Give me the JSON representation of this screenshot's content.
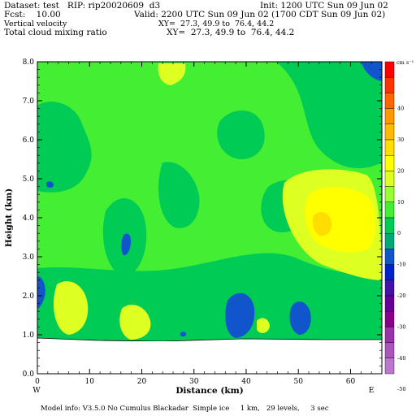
{
  "header": {
    "dataset": "Dataset: test   RIP: rip20020609  d3",
    "init": "Init: 1200 UTC Sun 09 Jun 02",
    "fcst": "Fcst:    10.00",
    "valid": "Valid: 2200 UTC Sun 09 Jun 02 (1700 CDT Sun 09 Jun 02)",
    "field1": "Vertical velocity",
    "field1_xy": "XY=  27.3, 49.9 to  76.4, 44.2",
    "field2": "Total cloud mixing ratio",
    "field2_xy": "XY=  27.3, 49.9 to  76.4, 44.2"
  },
  "footer": "Model info: V3.5.0 No Cumulus Blackadar  Simple ice     1 km,   29 levels,     3 sec",
  "chart_data": {
    "type": "heatmap",
    "xlabel": "Distance (km)",
    "ylabel": "Height (km)",
    "xlim": [
      0,
      66
    ],
    "ylim": [
      0,
      8
    ],
    "x_ticks": [
      "0",
      "10",
      "20",
      "30",
      "40",
      "50",
      "60"
    ],
    "y_ticks": [
      "0.0",
      "1.0",
      "2.0",
      "3.0",
      "4.0",
      "5.0",
      "6.0",
      "7.0",
      "8.0"
    ],
    "x_left_label": "W",
    "x_right_label": "E",
    "colorbar": {
      "units": "cm s⁻¹",
      "labels": [
        "40",
        "30",
        "20",
        "10",
        "0",
        "-10",
        "-20",
        "-30",
        "-40",
        "-50"
      ],
      "colors": [
        "#ff0000",
        "#ff3300",
        "#ff6600",
        "#ff9900",
        "#ffbb00",
        "#ffdd00",
        "#ffff00",
        "#ddff22",
        "#99ff33",
        "#44ee33",
        "#00cc55",
        "#00aa77",
        "#1155cc",
        "#0022cc",
        "#4411aa",
        "#660099",
        "#880088",
        "#9933aa",
        "#aa55bb",
        "#bb77cc"
      ]
    },
    "ground_height_km": 0.88,
    "regions": [
      {
        "level": "0",
        "color": "#44ee33"
      },
      {
        "level": "-5",
        "color": "#00cc55"
      },
      {
        "level": "5",
        "color": "#ddff22"
      },
      {
        "level": "10",
        "color": "#ffff00"
      },
      {
        "level": "15",
        "color": "#ffdd00"
      },
      {
        "level": "-15",
        "color": "#1155cc"
      }
    ]
  }
}
